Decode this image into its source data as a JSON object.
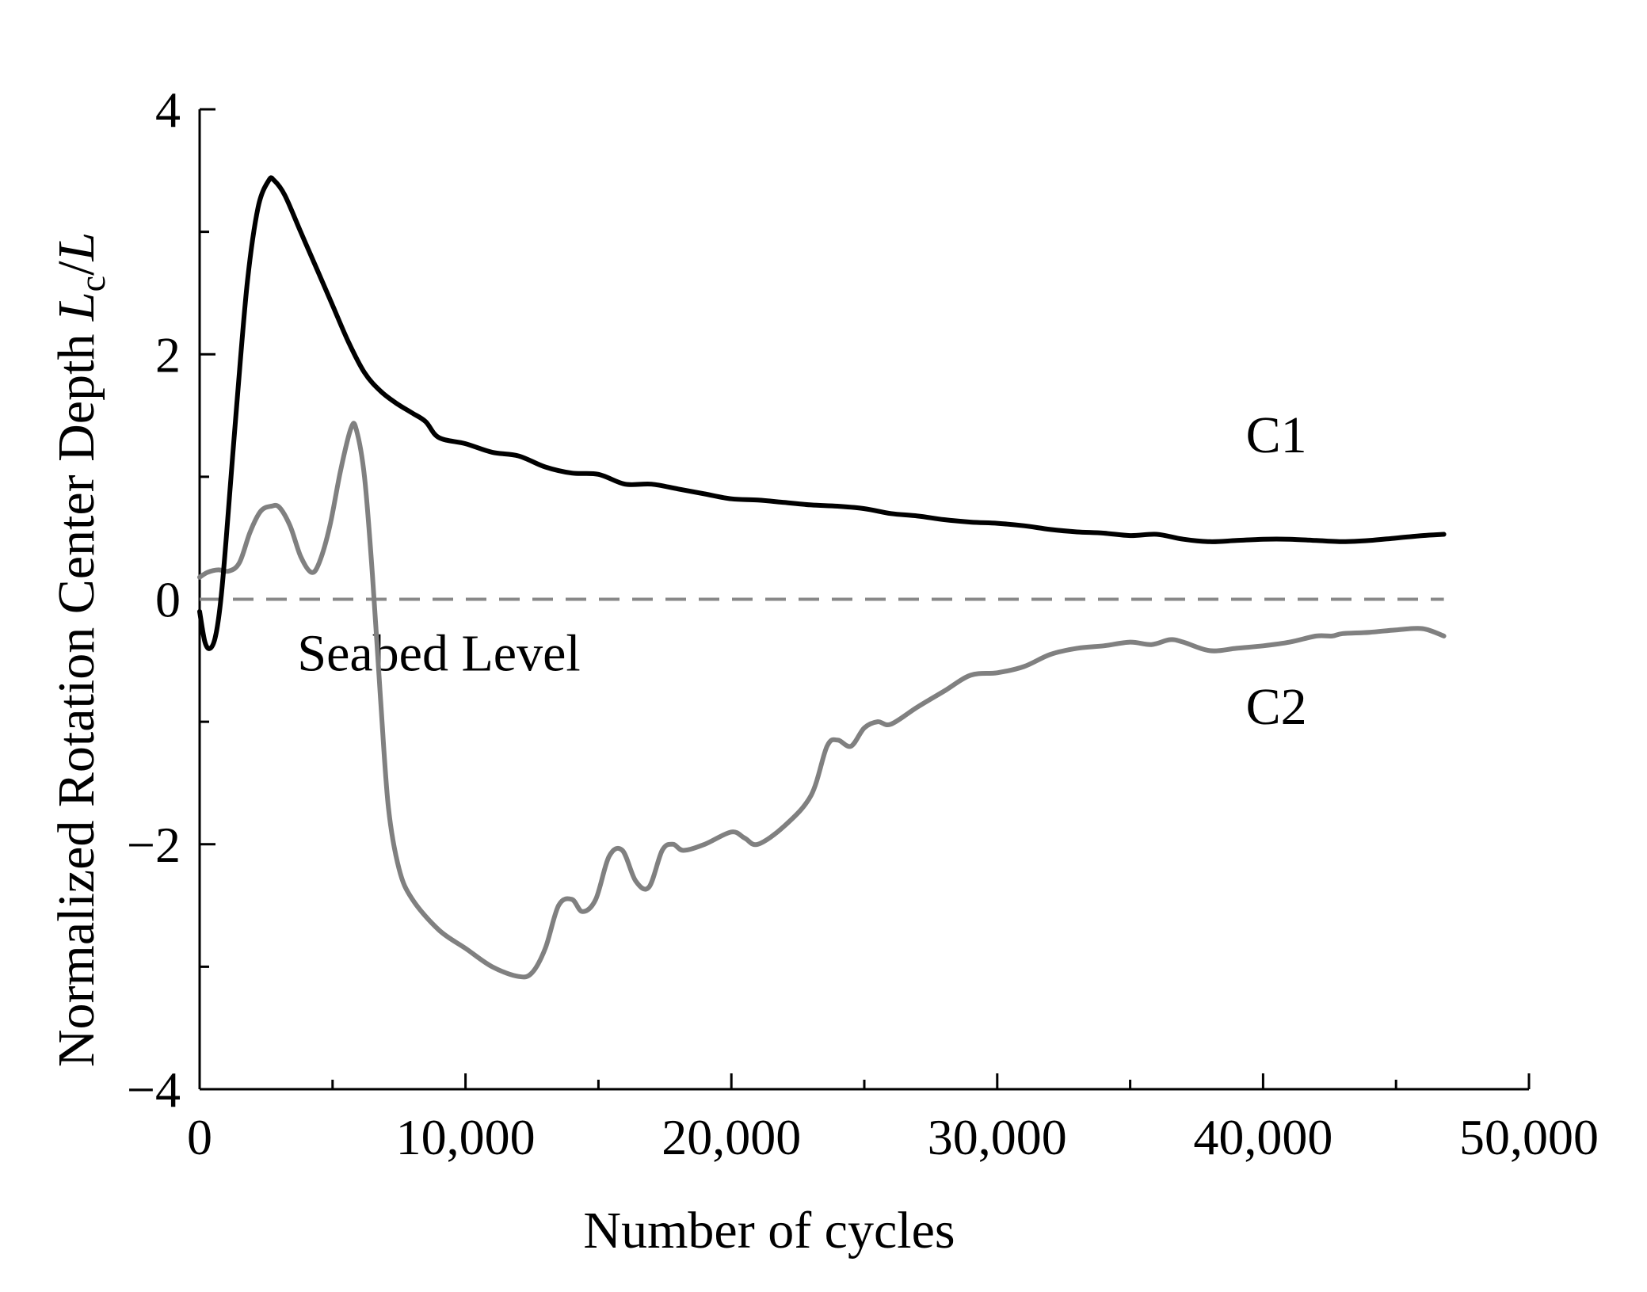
{
  "chart_data": {
    "type": "line",
    "xlabel": "Number of cycles",
    "ylabel": "Normalized Rotation Center Depth",
    "ylabel_symbol": {
      "L_main": "L",
      "sub": "c",
      "slash": "/",
      "L_denom": "L"
    },
    "xlim": [
      0,
      50000
    ],
    "ylim": [
      -4,
      4
    ],
    "x_ticks": [
      0,
      10000,
      20000,
      30000,
      40000,
      50000
    ],
    "x_tick_labels": [
      "0",
      "10,000",
      "20,000",
      "30,000",
      "40,000",
      "50,000"
    ],
    "y_ticks": [
      -4,
      -2,
      0,
      2,
      4
    ],
    "y_tick_labels": [
      "−4",
      "−2",
      "0",
      "2",
      "4"
    ],
    "grid": false,
    "annotations": [
      {
        "text": "Seabed Level",
        "y": 0,
        "style": "dashed",
        "color": "#888888"
      }
    ],
    "series": [
      {
        "name": "C1",
        "color": "#000000",
        "x": [
          0,
          200,
          400,
          600,
          800,
          1000,
          1400,
          1800,
          2200,
          2600,
          2800,
          3200,
          3800,
          4400,
          5000,
          5600,
          6200,
          6800,
          7400,
          8000,
          8500,
          9000,
          10000,
          11000,
          12000,
          13000,
          14000,
          15000,
          16000,
          17000,
          18000,
          19000,
          20000,
          21000,
          22000,
          23000,
          24000,
          25000,
          26000,
          27000,
          28000,
          29000,
          30000,
          31000,
          32000,
          33000,
          34000,
          35000,
          36000,
          37000,
          38000,
          39000,
          40000,
          41000,
          42000,
          43000,
          44000,
          45000,
          46000,
          46800
        ],
        "y": [
          -0.1,
          -0.35,
          -0.4,
          -0.3,
          0.0,
          0.5,
          1.6,
          2.6,
          3.2,
          3.42,
          3.42,
          3.3,
          3.0,
          2.7,
          2.4,
          2.1,
          1.85,
          1.7,
          1.6,
          1.52,
          1.45,
          1.32,
          1.27,
          1.2,
          1.17,
          1.08,
          1.03,
          1.02,
          0.94,
          0.94,
          0.9,
          0.86,
          0.82,
          0.81,
          0.79,
          0.77,
          0.76,
          0.74,
          0.7,
          0.68,
          0.65,
          0.63,
          0.62,
          0.6,
          0.57,
          0.55,
          0.54,
          0.52,
          0.53,
          0.49,
          0.47,
          0.48,
          0.49,
          0.49,
          0.48,
          0.47,
          0.48,
          0.5,
          0.52,
          0.53
        ]
      },
      {
        "name": "C2",
        "color": "#808080",
        "x": [
          0,
          300,
          700,
          1100,
          1500,
          1900,
          2300,
          2700,
          3000,
          3400,
          3800,
          4200,
          4500,
          4900,
          5300,
          5700,
          5900,
          6200,
          6500,
          6800,
          7100,
          7500,
          8000,
          9000,
          10000,
          11000,
          12000,
          12500,
          13000,
          13500,
          14000,
          14400,
          14900,
          15400,
          15900,
          16400,
          16900,
          17400,
          17800,
          18200,
          19000,
          20000,
          20500,
          21000,
          22000,
          23000,
          23600,
          24000,
          24500,
          25000,
          25500,
          26000,
          27000,
          28000,
          29000,
          30000,
          31000,
          32000,
          33000,
          34000,
          35000,
          35800,
          36500,
          37000,
          38000,
          39000,
          40000,
          41000,
          42000,
          42600,
          43000,
          44000,
          45000,
          46000,
          46800
        ],
        "y": [
          0.18,
          0.22,
          0.24,
          0.23,
          0.3,
          0.55,
          0.72,
          0.76,
          0.75,
          0.6,
          0.35,
          0.22,
          0.3,
          0.6,
          1.05,
          1.4,
          1.38,
          1.0,
          0.2,
          -0.8,
          -1.7,
          -2.2,
          -2.45,
          -2.7,
          -2.85,
          -3.0,
          -3.08,
          -3.05,
          -2.85,
          -2.5,
          -2.45,
          -2.55,
          -2.45,
          -2.1,
          -2.05,
          -2.3,
          -2.35,
          -2.05,
          -2.0,
          -2.05,
          -2.0,
          -1.9,
          -1.95,
          -2.0,
          -1.85,
          -1.6,
          -1.2,
          -1.15,
          -1.2,
          -1.05,
          -1.0,
          -1.02,
          -0.88,
          -0.75,
          -0.62,
          -0.6,
          -0.55,
          -0.45,
          -0.4,
          -0.38,
          -0.35,
          -0.37,
          -0.33,
          -0.35,
          -0.42,
          -0.4,
          -0.38,
          -0.35,
          -0.3,
          -0.3,
          -0.28,
          -0.27,
          -0.25,
          -0.24,
          -0.3
        ]
      }
    ]
  }
}
